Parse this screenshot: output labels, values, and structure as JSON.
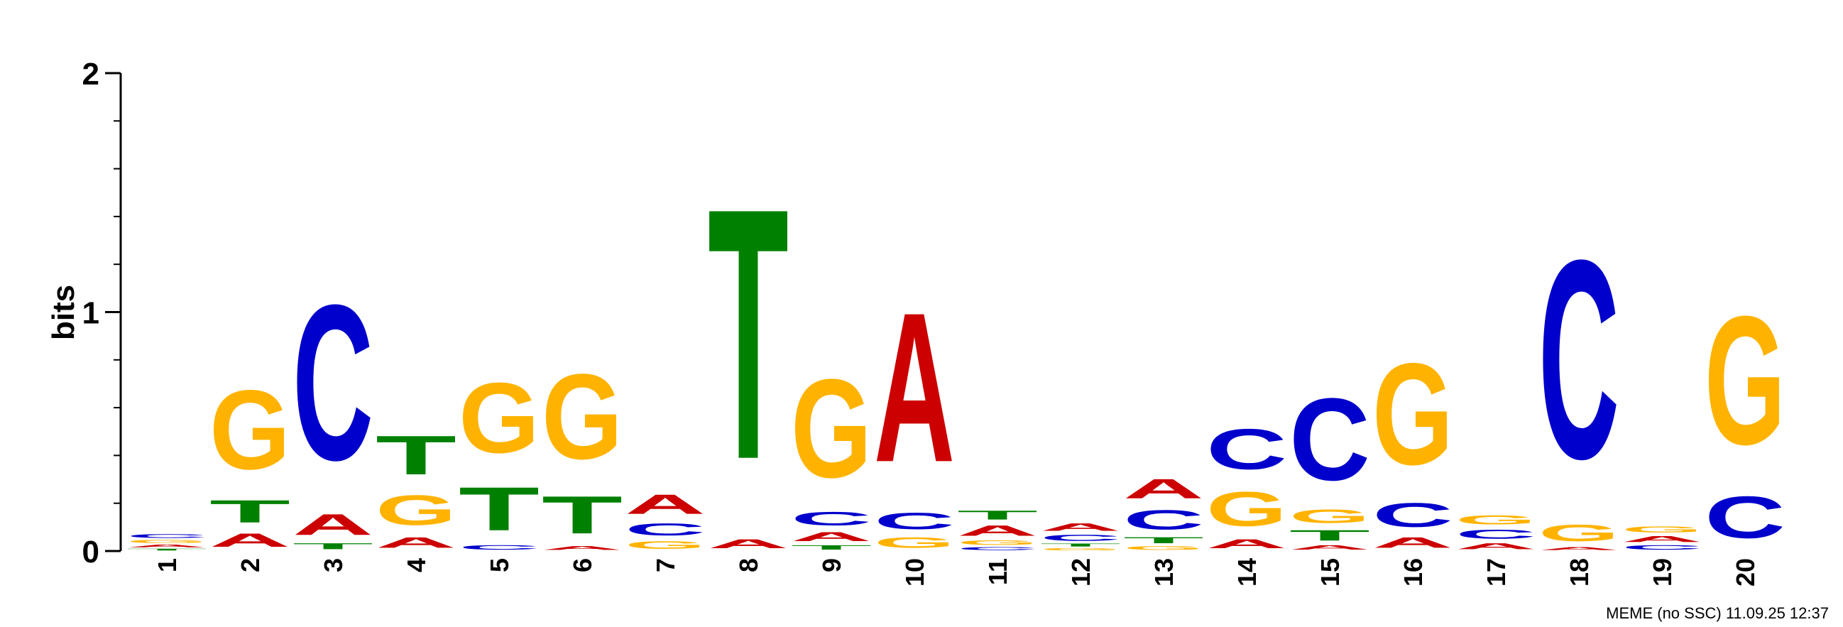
{
  "chart_data": {
    "type": "sequence-logo",
    "ylabel": "bits",
    "ylim": [
      0,
      2
    ],
    "yticks": [
      "0",
      "1",
      "2"
    ],
    "footer": "MEME (no SSC) 11.09.25 12:37",
    "colors": {
      "A": "#cc0000",
      "C": "#0000cc",
      "G": "#ffb300",
      "T": "#008000"
    },
    "positions": [
      {
        "pos": "1",
        "stack": [
          [
            "T",
            0.012
          ],
          [
            "A",
            0.018
          ],
          [
            "G",
            0.02
          ],
          [
            "C",
            0.025
          ]
        ]
      },
      {
        "pos": "2",
        "stack": [
          [
            "A",
            0.09
          ],
          [
            "T",
            0.15
          ],
          [
            "G",
            0.53
          ]
        ]
      },
      {
        "pos": "3",
        "stack": [
          [
            "T",
            0.04
          ],
          [
            "A",
            0.14
          ],
          [
            "C",
            1.04
          ]
        ]
      },
      {
        "pos": "4",
        "stack": [
          [
            "A",
            0.07
          ],
          [
            "G",
            0.2
          ],
          [
            "T",
            0.26
          ]
        ]
      },
      {
        "pos": "5",
        "stack": [
          [
            "C",
            0.03
          ],
          [
            "T",
            0.29
          ],
          [
            "G",
            0.47
          ]
        ]
      },
      {
        "pos": "6",
        "stack": [
          [
            "A",
            0.025
          ],
          [
            "T",
            0.25
          ],
          [
            "G",
            0.57
          ]
        ]
      },
      {
        "pos": "7",
        "stack": [
          [
            "G",
            0.05
          ],
          [
            "C",
            0.08
          ],
          [
            "A",
            0.13
          ]
        ]
      },
      {
        "pos": "8",
        "stack": [
          [
            "A",
            0.06
          ],
          [
            "T",
            1.68
          ]
        ]
      },
      {
        "pos": "9",
        "stack": [
          [
            "T",
            0.03
          ],
          [
            "A",
            0.06
          ],
          [
            "C",
            0.09
          ],
          [
            "G",
            0.66
          ]
        ]
      },
      {
        "pos": "10",
        "stack": [
          [
            "G",
            0.07
          ],
          [
            "C",
            0.11
          ],
          [
            "A",
            1.0
          ]
        ]
      },
      {
        "pos": "11",
        "stack": [
          [
            "C",
            0.02
          ],
          [
            "G",
            0.03
          ],
          [
            "A",
            0.07
          ],
          [
            "T",
            0.06
          ]
        ]
      },
      {
        "pos": "12",
        "stack": [
          [
            "G",
            0.015
          ],
          [
            "T",
            0.02
          ],
          [
            "C",
            0.04
          ],
          [
            "A",
            0.05
          ]
        ]
      },
      {
        "pos": "13",
        "stack": [
          [
            "G",
            0.025
          ],
          [
            "T",
            0.04
          ],
          [
            "C",
            0.13
          ],
          [
            "A",
            0.13
          ]
        ]
      },
      {
        "pos": "14",
        "stack": [
          [
            "A",
            0.06
          ],
          [
            "G",
            0.23
          ],
          [
            "C",
            0.27
          ]
        ]
      },
      {
        "pos": "15",
        "stack": [
          [
            "A",
            0.03
          ],
          [
            "T",
            0.07
          ],
          [
            "G",
            0.09
          ],
          [
            "C",
            0.55
          ]
        ]
      },
      {
        "pos": "16",
        "stack": [
          [
            "A",
            0.07
          ],
          [
            "C",
            0.16
          ],
          [
            "G",
            0.68
          ]
        ]
      },
      {
        "pos": "17",
        "stack": [
          [
            "A",
            0.04
          ],
          [
            "C",
            0.06
          ],
          [
            "G",
            0.06
          ]
        ]
      },
      {
        "pos": "18",
        "stack": [
          [
            "A",
            0.02
          ],
          [
            "G",
            0.11
          ],
          [
            "C",
            1.33
          ]
        ]
      },
      {
        "pos": "19",
        "stack": [
          [
            "C",
            0.03
          ],
          [
            "A",
            0.04
          ],
          [
            "G",
            0.04
          ]
        ]
      },
      {
        "pos": "20",
        "stack": [
          [
            "C",
            0.28
          ],
          [
            "G",
            0.86
          ]
        ]
      }
    ]
  }
}
